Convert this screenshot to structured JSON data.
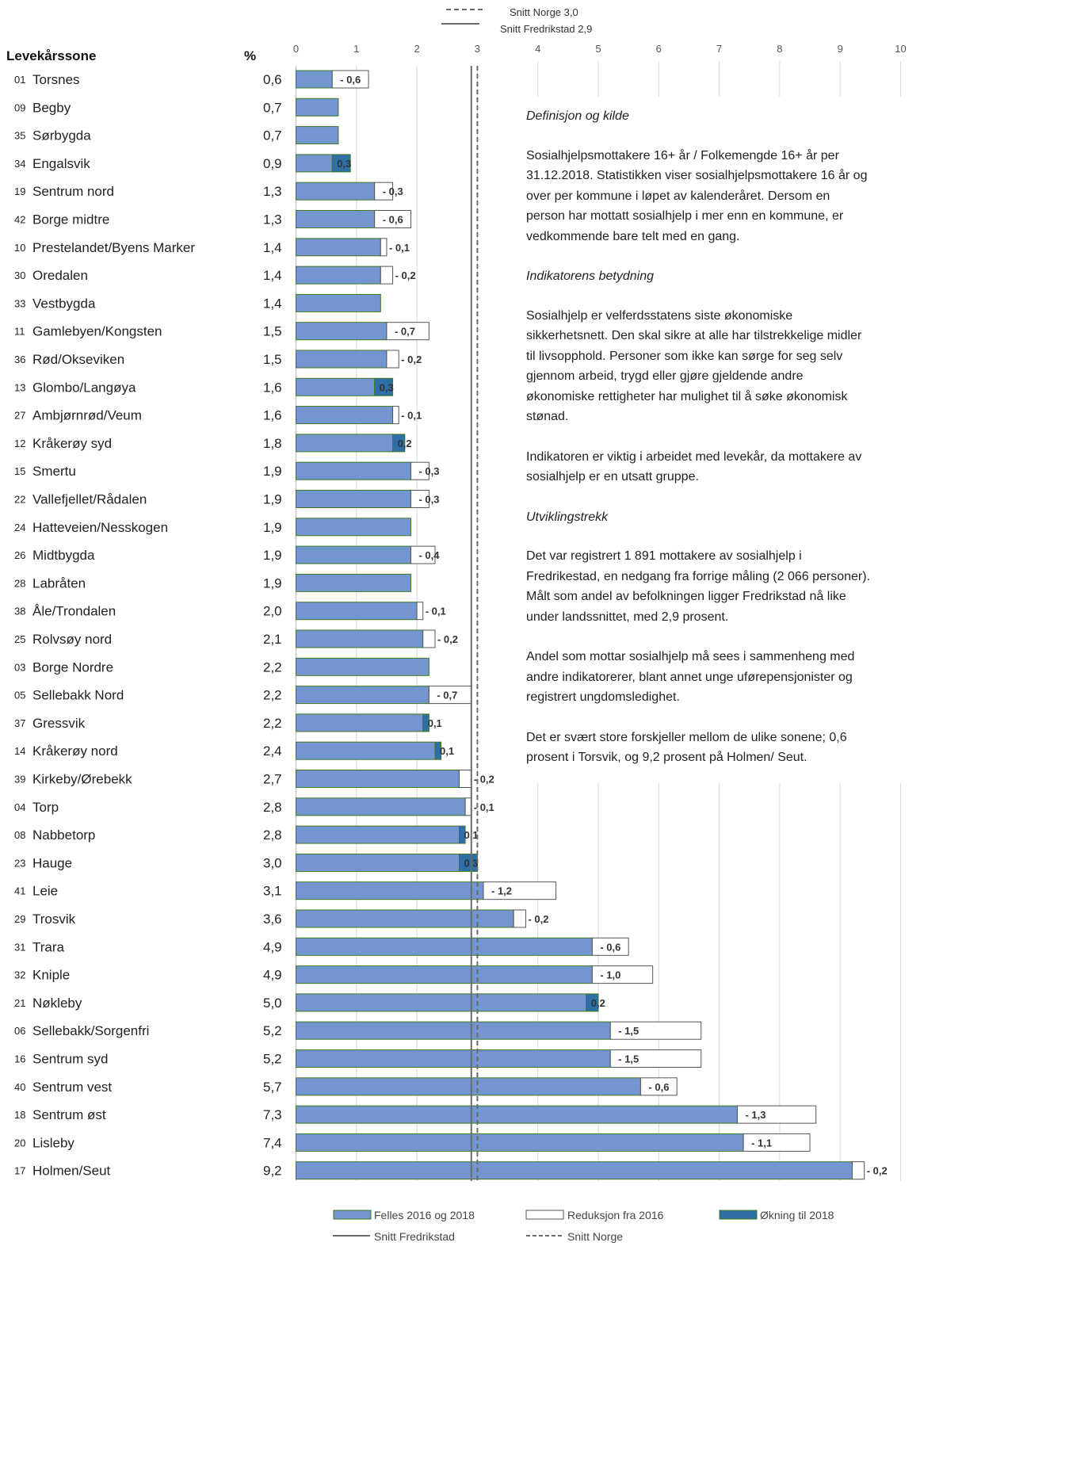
{
  "chart_data": {
    "type": "bar",
    "orientation": "horizontal",
    "column_headers": {
      "zone": "Levekårssone",
      "value": "%"
    },
    "x_ticks": [
      0,
      1,
      2,
      3,
      4,
      5,
      6,
      7,
      8,
      9,
      10
    ],
    "xlim": [
      0,
      10
    ],
    "rows": [
      {
        "code": "01",
        "name": "Torsnes",
        "value": "0,6",
        "v": 0.6,
        "change": -0.6,
        "label": "- 0,6"
      },
      {
        "code": "09",
        "name": "Begby",
        "value": "0,7",
        "v": 0.7,
        "change": 0,
        "label": ""
      },
      {
        "code": "35",
        "name": "Sørbygda",
        "value": "0,7",
        "v": 0.7,
        "change": 0,
        "label": ""
      },
      {
        "code": "34",
        "name": "Engalsvik",
        "value": "0,9",
        "v": 0.9,
        "change": 0.3,
        "label": "0,3"
      },
      {
        "code": "19",
        "name": "Sentrum nord",
        "value": "1,3",
        "v": 1.3,
        "change": -0.3,
        "label": "- 0,3"
      },
      {
        "code": "42",
        "name": "Borge midtre",
        "value": "1,3",
        "v": 1.3,
        "change": -0.6,
        "label": "- 0,6"
      },
      {
        "code": "10",
        "name": "Prestelandet/Byens Marker",
        "value": "1,4",
        "v": 1.4,
        "change": -0.1,
        "label": "- 0,1"
      },
      {
        "code": "30",
        "name": "Oredalen",
        "value": "1,4",
        "v": 1.4,
        "change": -0.2,
        "label": "- 0,2"
      },
      {
        "code": "33",
        "name": "Vestbygda",
        "value": "1,4",
        "v": 1.4,
        "change": 0,
        "label": ""
      },
      {
        "code": "11",
        "name": "Gamlebyen/Kongsten",
        "value": "1,5",
        "v": 1.5,
        "change": -0.7,
        "label": "- 0,7"
      },
      {
        "code": "36",
        "name": "Rød/Okseviken",
        "value": "1,5",
        "v": 1.5,
        "change": -0.2,
        "label": "- 0,2"
      },
      {
        "code": "13",
        "name": "Glombo/Langøya",
        "value": "1,6",
        "v": 1.6,
        "change": 0.3,
        "label": "0,3"
      },
      {
        "code": "27",
        "name": "Ambjørnrød/Veum",
        "value": "1,6",
        "v": 1.6,
        "change": -0.1,
        "label": "- 0,1"
      },
      {
        "code": "12",
        "name": "Kråkerøy syd",
        "value": "1,8",
        "v": 1.8,
        "change": 0.2,
        "label": "0,2"
      },
      {
        "code": "15",
        "name": "Smertu",
        "value": "1,9",
        "v": 1.9,
        "change": -0.3,
        "label": "- 0,3"
      },
      {
        "code": "22",
        "name": "Vallefjellet/Rådalen",
        "value": "1,9",
        "v": 1.9,
        "change": -0.3,
        "label": "- 0,3"
      },
      {
        "code": "24",
        "name": "Hatteveien/Nesskogen",
        "value": "1,9",
        "v": 1.9,
        "change": 0,
        "label": ""
      },
      {
        "code": "26",
        "name": "Midtbygda",
        "value": "1,9",
        "v": 1.9,
        "change": -0.4,
        "label": "- 0,4"
      },
      {
        "code": "28",
        "name": "Labråten",
        "value": "1,9",
        "v": 1.9,
        "change": 0,
        "label": ""
      },
      {
        "code": "38",
        "name": "Åle/Trondalen",
        "value": "2,0",
        "v": 2.0,
        "change": -0.1,
        "label": "- 0,1"
      },
      {
        "code": "25",
        "name": "Rolvsøy nord",
        "value": "2,1",
        "v": 2.1,
        "change": -0.2,
        "label": "- 0,2"
      },
      {
        "code": "03",
        "name": "Borge Nordre",
        "value": "2,2",
        "v": 2.2,
        "change": 0,
        "label": ""
      },
      {
        "code": "05",
        "name": "Sellebakk Nord",
        "value": "2,2",
        "v": 2.2,
        "change": -0.7,
        "label": "- 0,7"
      },
      {
        "code": "37",
        "name": "Gressvik",
        "value": "2,2",
        "v": 2.2,
        "change": 0.1,
        "label": "0,1"
      },
      {
        "code": "14",
        "name": "Kråkerøy nord",
        "value": "2,4",
        "v": 2.4,
        "change": 0.1,
        "label": "0,1"
      },
      {
        "code": "39",
        "name": "Kirkeby/Ørebekk",
        "value": "2,7",
        "v": 2.7,
        "change": -0.2,
        "label": "- 0,2"
      },
      {
        "code": "04",
        "name": "Torp",
        "value": "2,8",
        "v": 2.8,
        "change": -0.1,
        "label": "- 0,1"
      },
      {
        "code": "08",
        "name": "Nabbetorp",
        "value": "2,8",
        "v": 2.8,
        "change": 0.1,
        "label": "0,1"
      },
      {
        "code": "23",
        "name": "Hauge",
        "value": "3,0",
        "v": 3.0,
        "change": 0.3,
        "label": "0,3"
      },
      {
        "code": "41",
        "name": "Leie",
        "value": "3,1",
        "v": 3.1,
        "change": -1.2,
        "label": "- 1,2"
      },
      {
        "code": "29",
        "name": "Trosvik",
        "value": "3,6",
        "v": 3.6,
        "change": -0.2,
        "label": "- 0,2"
      },
      {
        "code": "31",
        "name": "Trara",
        "value": "4,9",
        "v": 4.9,
        "change": -0.6,
        "label": "- 0,6"
      },
      {
        "code": "32",
        "name": "Kniple",
        "value": "4,9",
        "v": 4.9,
        "change": -1.0,
        "label": "- 1,0"
      },
      {
        "code": "21",
        "name": "Nøkleby",
        "value": "5,0",
        "v": 5.0,
        "change": 0.2,
        "label": "0,2"
      },
      {
        "code": "06",
        "name": "Sellebakk/Sorgenfri",
        "value": "5,2",
        "v": 5.2,
        "change": -1.5,
        "label": "- 1,5"
      },
      {
        "code": "16",
        "name": "Sentrum syd",
        "value": "5,2",
        "v": 5.2,
        "change": -1.5,
        "label": "- 1,5"
      },
      {
        "code": "40",
        "name": "Sentrum vest",
        "value": "5,7",
        "v": 5.7,
        "change": -0.6,
        "label": "- 0,6"
      },
      {
        "code": "18",
        "name": "Sentrum øst",
        "value": "7,3",
        "v": 7.3,
        "change": -1.3,
        "label": "- 1,3"
      },
      {
        "code": "20",
        "name": "Lisleby",
        "value": "7,4",
        "v": 7.4,
        "change": -1.1,
        "label": "- 1,1"
      },
      {
        "code": "17",
        "name": "Holmen/Seut",
        "value": "9,2",
        "v": 9.2,
        "change": -0.2,
        "label": "- 0,2"
      }
    ],
    "reference_lines": [
      {
        "name": "Snitt Norge",
        "value": 3.0,
        "label": "Snitt Norge 3,0",
        "style": "dashed"
      },
      {
        "name": "Snitt Fredrikstad",
        "value": 2.9,
        "label": "Snitt Fredrikstad 2,9",
        "style": "solid"
      }
    ],
    "legend": [
      {
        "name": "Felles 2016 og 2018",
        "swatch": "common"
      },
      {
        "name": "Reduksjon fra 2016",
        "swatch": "reduction"
      },
      {
        "name": "Økning til 2018",
        "swatch": "increase"
      },
      {
        "name": "Snitt Fredrikstad",
        "swatch": "solid-line"
      },
      {
        "name": "Snitt Norge",
        "swatch": "dashed-line"
      }
    ],
    "legend_position": "bottom",
    "grid": true,
    "colors": {
      "common": "#7396d1",
      "common_border": "#3f7a22",
      "reduction": "#ffffff",
      "reduction_border": "#555555",
      "increase": "#2e6fa6",
      "grid": "#d9d9d9",
      "line": "#6b6b6b"
    }
  },
  "info": {
    "h1": "Definisjon og kilde",
    "p1": "Sosialhjelpsmottakere 16+ år / Folkemengde 16+ år per\n31.12.2018. Statistikken viser sosialhjelpsmottakere 16 år og\nover per kommune i løpet av kalenderåret. Dersom en\nperson har mottatt sosialhjelp i mer enn en kommune, er\nvedkommende bare telt med en gang.",
    "h2": "Indikatorens betydning",
    "p2": "Sosialhjelp er velferdsstatens siste økonomiske\nsikkerhetsnett. Den skal sikre at alle har tilstrekkelige midler\ntil livsopphold. Personer som ikke kan sørge for seg selv\ngjennom arbeid, trygd eller gjøre gjeldende andre\nøkonomiske rettigheter har mulighet til å søke økonomisk\nstønad.",
    "p3": "Indikatoren er viktig i arbeidet med levekår, da mottakere av\nsosialhjelp er en utsatt gruppe.",
    "h3": "Utviklingstrekk",
    "p4": "Det var registrert 1 891 mottakere av sosialhjelp i\nFredrikestad, en nedgang fra forrige måling (2 066 personer).\nMålt som andel av befolkningen ligger Fredrikstad nå like\nunder landssnittet, med 2,9 prosent.",
    "p5": "Andel som mottar sosialhjelp må sees i sammenheng med\nandre indikatorerer, blant annet unge uførepensjonister og\nregistrert ungdomsledighet.",
    "p6": "Det er svært store forskjeller mellom de ulike sonene; 0,6\nprosent i Torsvik, og 9,2 prosent på Holmen/ Seut."
  }
}
